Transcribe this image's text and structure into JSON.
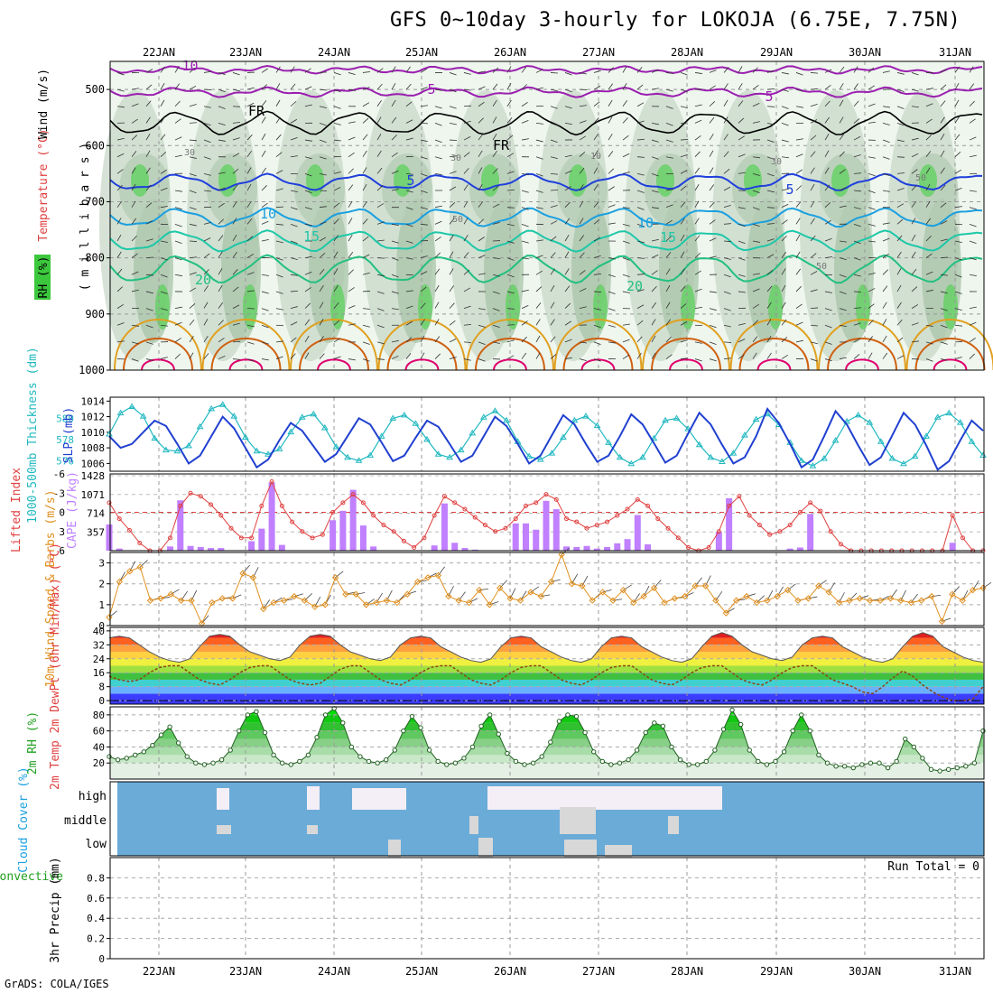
{
  "title": "GFS 0~10day 3-hourly for LOKOJA (6.75E, 7.75N)",
  "footer": "GrADS: COLA/IGES",
  "colors": {
    "purple": "#9b1fb0",
    "black": "#000000",
    "blue": "#1f3fdc",
    "lightblue": "#1aa0e0",
    "teal": "#1ec8a8",
    "green2": "#22c080",
    "orange": "#e0a020",
    "darkorange": "#d06010",
    "magenta": "#e0006e",
    "rhgreen": "#3cc83c",
    "slp": "#2040d0",
    "thick": "#20b8c0",
    "lifted": "#e04040",
    "cape": "#c080ff",
    "wind10": "#e09020",
    "cloudblue": "#6aabd8",
    "cloudwhite": "#f4eef6",
    "cloudgray": "#d8d8d8"
  },
  "chart_data": {
    "days": [
      "22JAN",
      "23JAN",
      "24JAN",
      "25JAN",
      "26JAN",
      "27JAN",
      "28JAN",
      "29JAN",
      "30JAN",
      "31JAN"
    ],
    "panels": [
      {
        "type": "heatmap",
        "id": "upper",
        "ylabel_title_parts": [
          "RH (%)",
          "Temperature (°C)",
          "Wind (m/s)"
        ],
        "ylabel_units": "( m i l l i b a r s )",
        "yticks": [
          "500",
          "600",
          "700",
          "800",
          "900",
          "1000"
        ],
        "ylim": [
          1000,
          450
        ],
        "contour_labels": [
          "-10",
          "5",
          "5",
          "FR",
          "FR",
          "5",
          "5",
          "10",
          "10",
          "15",
          "15",
          "20",
          "20",
          "30",
          "30",
          "50",
          "50",
          "10",
          "30",
          "50"
        ]
      },
      {
        "type": "line",
        "id": "slp",
        "ylabel_left": "1000-500mb Thickness (dm)",
        "ylabel_right": "SLP (mb)",
        "yticks_left": [
          "580",
          "578",
          "576"
        ],
        "yticks_right": [
          "1014",
          "1012",
          "1010",
          "1008",
          "1006"
        ],
        "thickness_dm": [
          578.5,
          580.5,
          581.1,
          580.2,
          578.1,
          577.0,
          576.9,
          577.4,
          579.2,
          580.9,
          581.3,
          580.2,
          578.2,
          576.9,
          576.6,
          577.1,
          578.7,
          580.1,
          580.4,
          579.1,
          577.3,
          576.3,
          576.0,
          576.5,
          578.3,
          580.0,
          580.3,
          579.5,
          578.0,
          576.6,
          576.3,
          577.0,
          578.6,
          580.1,
          580.7,
          579.8,
          577.8,
          576.4,
          576.1,
          576.7,
          578.2,
          579.8,
          580.2,
          579.3,
          577.7,
          576.3,
          575.7,
          576.3,
          578.1,
          579.8,
          580.0,
          579.0,
          577.5,
          576.3,
          575.9,
          576.7,
          578.4,
          579.9,
          580.4,
          579.4,
          577.7,
          576.0,
          575.5,
          576.2,
          577.9,
          579.7,
          580.3,
          579.6,
          577.8,
          576.2,
          575.7,
          576.4,
          578.3,
          580.1,
          580.5,
          579.6,
          577.8,
          576.5
        ],
        "slp_mb": [
          1009.5,
          1008.0,
          1008.5,
          1010.0,
          1011.5,
          1010.8,
          1008.5,
          1006.0,
          1007.0,
          1009.5,
          1012.0,
          1010.5,
          1008.0,
          1005.5,
          1006.5,
          1009.0,
          1011.2,
          1010.2,
          1008.2,
          1006.2,
          1007.2,
          1009.5,
          1011.8,
          1011.0,
          1008.7,
          1006.3,
          1007.0,
          1009.3,
          1011.5,
          1010.7,
          1008.5,
          1006.2,
          1007.0,
          1009.5,
          1012.0,
          1010.8,
          1008.5,
          1006.0,
          1007.0,
          1009.6,
          1012.2,
          1011.0,
          1008.5,
          1006.2,
          1007.0,
          1009.5,
          1012.3,
          1011.0,
          1008.6,
          1006.1,
          1007.0,
          1009.8,
          1012.5,
          1011.0,
          1008.4,
          1006.0,
          1006.8,
          1009.5,
          1013.0,
          1011.2,
          1008.5,
          1005.5,
          1006.5,
          1009.5,
          1012.7,
          1011.0,
          1008.3,
          1005.8,
          1006.8,
          1009.6,
          1012.5,
          1011.0,
          1008.3,
          1005.2,
          1006.3,
          1009.0,
          1011.5,
          1010.2
        ]
      },
      {
        "type": "bar",
        "id": "cape",
        "ylabel_left": "Lifted Index",
        "ylabel_right": "CAPE (J/kg)",
        "yticks_left": [
          "-6",
          "-3",
          "0",
          "3",
          "6"
        ],
        "yticks_right": [
          "1428",
          "1071",
          "714",
          "357"
        ],
        "cape_jkg": [
          500,
          40,
          0,
          0,
          0,
          0,
          80,
          960,
          90,
          70,
          50,
          50,
          0,
          0,
          180,
          420,
          1300,
          110,
          0,
          0,
          0,
          0,
          580,
          760,
          1160,
          480,
          80,
          0,
          0,
          0,
          0,
          0,
          100,
          900,
          150,
          50,
          20,
          0,
          0,
          0,
          520,
          520,
          400,
          950,
          790,
          80,
          70,
          90,
          40,
          70,
          140,
          220,
          680,
          120,
          0,
          0,
          0,
          0,
          0,
          0,
          360,
          1000,
          0,
          0,
          0,
          0,
          0,
          40,
          60,
          700,
          0,
          0,
          0,
          0,
          0,
          0,
          0,
          0,
          0,
          0,
          0,
          0,
          0,
          150,
          0,
          0,
          0
        ],
        "lifted_index": [
          -1.5,
          1,
          2.8,
          4.8,
          6,
          6,
          4,
          -1,
          -3,
          -2.5,
          -1.2,
          0.5,
          2.5,
          4,
          4,
          -1,
          -4.8,
          -1,
          1.5,
          3,
          4,
          3.5,
          0,
          -1.5,
          -2.8,
          -1.5,
          0.5,
          2,
          3,
          4.5,
          5.5,
          4,
          0.5,
          -2.5,
          -1.5,
          -0.5,
          0.8,
          2,
          3,
          2.5,
          1,
          -1,
          -1.5,
          -2.8,
          -2,
          1,
          1.5,
          2.5,
          2,
          1.5,
          0.5,
          -0.5,
          -2,
          -1,
          1,
          2.5,
          4,
          5.5,
          6,
          5.5,
          3,
          -1,
          -2.5,
          0.5,
          2,
          3.5,
          3,
          2,
          0,
          -1.5,
          -0.2,
          3,
          5,
          6,
          6,
          6,
          6,
          6,
          6,
          6,
          6,
          6,
          6,
          0.5,
          4,
          6,
          6
        ]
      },
      {
        "type": "line",
        "id": "wind10",
        "ylabel": "10m Wind Speed & Barbs (m/s)",
        "yticks": [
          "3",
          "2",
          "1",
          "0"
        ],
        "ylim": [
          0,
          3.5
        ],
        "wind_ms": [
          0.4,
          2.1,
          2.6,
          2.8,
          1.2,
          1.3,
          1.5,
          1.2,
          1.2,
          0.1,
          1.1,
          1.3,
          1.3,
          2.5,
          2.3,
          0.8,
          1.1,
          1.2,
          1.4,
          1.2,
          0.9,
          1.0,
          2.3,
          1.5,
          1.5,
          1.0,
          1.1,
          1.2,
          1.1,
          1.5,
          2.1,
          2.3,
          2.4,
          1.4,
          1.2,
          1.1,
          1.7,
          1.0,
          1.8,
          1.3,
          1.2,
          1.6,
          1.4,
          2.1,
          3.4,
          2.0,
          1.9,
          1.2,
          1.6,
          1.2,
          1.7,
          1.1,
          1.4,
          1.8,
          1.1,
          1.3,
          1.4,
          1.9,
          1.9,
          1.2,
          0.6,
          1.2,
          1.4,
          1.1,
          1.2,
          1.4,
          1.7,
          1.2,
          1.3,
          1.9,
          1.6,
          1.1,
          1.2,
          1.3,
          1.2,
          1.2,
          1.3,
          1.2,
          1.1,
          1.2,
          1.4,
          0.2,
          1.5,
          1.2,
          1.7,
          1.8
        ]
      },
      {
        "type": "area",
        "id": "temp2m",
        "ylabel": "2m Temp 2m DewPt (6hr Min/Max) (°C)",
        "yticks": [
          "40",
          "32",
          "24",
          "16",
          "8",
          "0"
        ],
        "ylim": [
          -2,
          42
        ],
        "temp_c": [
          36,
          37,
          36,
          32,
          28,
          25,
          23,
          22,
          24,
          31,
          37,
          38,
          37,
          32,
          28,
          26,
          24,
          23,
          25,
          32,
          37,
          38,
          37,
          32,
          28,
          26,
          24,
          23,
          25,
          32,
          36,
          37,
          36,
          31,
          28,
          25,
          23,
          22,
          24,
          31,
          36,
          37,
          36,
          31,
          28,
          25,
          23,
          22,
          24,
          31,
          36,
          37,
          36,
          31,
          28,
          25,
          23,
          22,
          24,
          31,
          37,
          39,
          37,
          32,
          28,
          26,
          24,
          23,
          25,
          32,
          36,
          37,
          36,
          31,
          28,
          25,
          23,
          22,
          24,
          31,
          37,
          39,
          37,
          31,
          28,
          25,
          23,
          22
        ],
        "dewpt_c": [
          14,
          12,
          11,
          12,
          16,
          19,
          20,
          20,
          16,
          12,
          10,
          9,
          12,
          16,
          19,
          20,
          20,
          16,
          12,
          10,
          9,
          10,
          14,
          18,
          20,
          20,
          16,
          12,
          10,
          9,
          12,
          16,
          19,
          20,
          20,
          16,
          12,
          10,
          9,
          12,
          16,
          19,
          20,
          20,
          16,
          12,
          10,
          9,
          12,
          16,
          19,
          20,
          20,
          16,
          12,
          10,
          9,
          12,
          16,
          19,
          20,
          20,
          16,
          12,
          10,
          9,
          12,
          16,
          19,
          20,
          20,
          16,
          12,
          10,
          8,
          5,
          4,
          8,
          13,
          17,
          14,
          9,
          5,
          2,
          0,
          0,
          1,
          8
        ]
      },
      {
        "type": "area",
        "id": "rh2m",
        "ylabel": "2m RH (%)",
        "yticks": [
          "80",
          "60",
          "40",
          "20"
        ],
        "ylim": [
          0,
          90
        ],
        "rh_pct": [
          28,
          24,
          26,
          30,
          34,
          42,
          55,
          65,
          45,
          28,
          20,
          18,
          20,
          24,
          36,
          60,
          80,
          84,
          58,
          30,
          20,
          18,
          22,
          30,
          52,
          80,
          88,
          70,
          40,
          28,
          22,
          20,
          24,
          36,
          60,
          78,
          64,
          36,
          22,
          18,
          20,
          26,
          40,
          66,
          80,
          56,
          32,
          22,
          18,
          20,
          28,
          46,
          72,
          80,
          78,
          58,
          34,
          22,
          18,
          20,
          24,
          36,
          58,
          70,
          66,
          40,
          24,
          18,
          18,
          22,
          36,
          62,
          86,
          68,
          36,
          22,
          18,
          22,
          34,
          60,
          80,
          60,
          30,
          20,
          16,
          16,
          14,
          18,
          20,
          20,
          14,
          22,
          50,
          40,
          26,
          12,
          10,
          12,
          14,
          16,
          20,
          60
        ]
      },
      {
        "type": "heatmap",
        "id": "cloud",
        "ylabel": "Cloud Cover (%)",
        "levels": [
          "high",
          "middle",
          "low"
        ]
      },
      {
        "type": "bar",
        "id": "precip",
        "ylabel_left": "Total / Rain Convective",
        "ylabel": "3hr Precip (mm)",
        "yticks": [
          "0.8",
          "0.6",
          "0.4",
          "0.2",
          "0"
        ],
        "ylim": [
          0,
          1
        ],
        "run_total": "Run Total = 0",
        "values": []
      }
    ]
  }
}
